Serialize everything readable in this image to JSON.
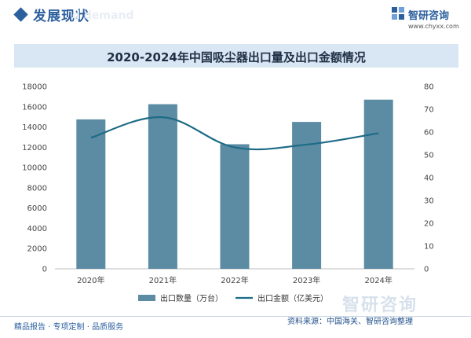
{
  "header": {
    "title": "发展现状",
    "watermark": "d demand",
    "brand": "智研咨询",
    "url": "www.chyxx.com"
  },
  "chart_data": {
    "type": "bar",
    "title": "2020-2024年中国吸尘器出口量及出口金额情况",
    "categories": [
      "2020年",
      "2021年",
      "2022年",
      "2023年",
      "2024年"
    ],
    "series": [
      {
        "name": "出口数量（万台）",
        "type": "bar",
        "axis": "left",
        "color": "#5b8ca3",
        "values": [
          14750,
          16250,
          12300,
          14500,
          16700
        ]
      },
      {
        "name": "出口金额（亿美元）",
        "type": "line",
        "axis": "right",
        "color": "#1e6b86",
        "values": [
          57.5,
          66.5,
          53.3,
          54.5,
          59.5
        ]
      }
    ],
    "y_left": {
      "min": 0,
      "max": 18000,
      "step": 2000,
      "ticks": [
        "0",
        "2000",
        "4000",
        "6000",
        "8000",
        "10000",
        "12000",
        "14000",
        "16000",
        "18000"
      ]
    },
    "y_right": {
      "min": 0,
      "max": 80,
      "step": 10,
      "ticks": [
        "0",
        "10",
        "20",
        "30",
        "40",
        "50",
        "60",
        "70",
        "80"
      ]
    },
    "grid": false,
    "legend": "bottom"
  },
  "footer": {
    "services": "精品报告 · 专项定制 · 品质服务",
    "source": "资料来源：中国海关、智研咨询整理",
    "brand_big": "智研咨询"
  }
}
